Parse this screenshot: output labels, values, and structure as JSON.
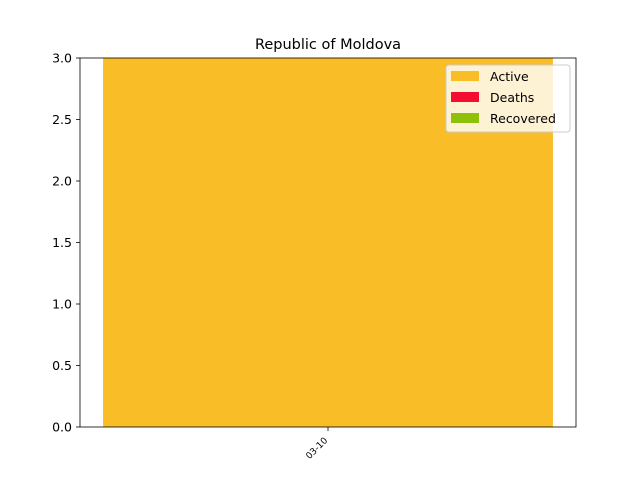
{
  "chart_data": {
    "type": "bar",
    "stacked": true,
    "title": "Republic of Moldova",
    "xlabel": "",
    "ylabel": "",
    "categories": [
      "03-10"
    ],
    "series": [
      {
        "name": "Active",
        "values": [
          3
        ],
        "color": "#f9bd28"
      },
      {
        "name": "Deaths",
        "values": [
          0
        ],
        "color": "#f20d31"
      },
      {
        "name": "Recovered",
        "values": [
          0
        ],
        "color": "#8fc10a"
      }
    ],
    "ylim": [
      0,
      3.0
    ],
    "yticks": [
      "0.0",
      "0.5",
      "1.0",
      "1.5",
      "2.0",
      "2.5",
      "3.0"
    ],
    "grid": false,
    "legend_position": "top-right"
  }
}
